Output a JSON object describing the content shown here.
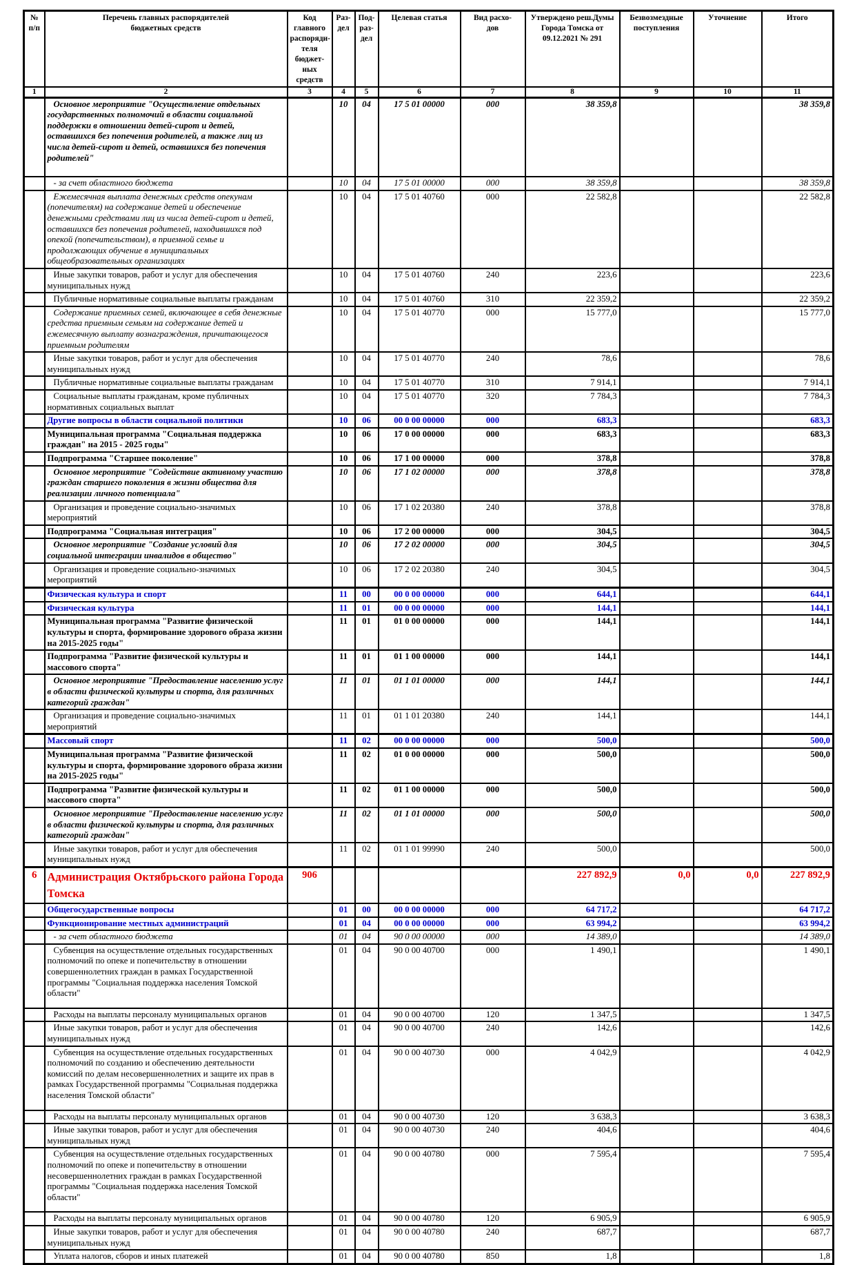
{
  "table": {
    "colors": {
      "section_heading": "#0000cd",
      "admin_heading": "#e60000",
      "body_text": "#000000"
    },
    "headers": {
      "num": "№\nп/п",
      "name": "Перечень главных распорядителей\nбюджетных средств",
      "code": "Код\nглавного\nраспоряди-\nтеля бюджет-\nных средств",
      "rz": "Раз-\nдел",
      "pr": "Под-\nраз-\nдел",
      "csr": "Целевая статья",
      "vr": "Вид расхо-\nдов",
      "approved": "Утверждено реш.Думы\nГорода Томска от\n09.12.2021 № 291",
      "grants": "Безвозмездные\nпоступления",
      "adjust": "Уточнение",
      "total": "Итого"
    },
    "column_numbers": [
      "1",
      "2",
      "3",
      "4",
      "5",
      "6",
      "7",
      "8",
      "9",
      "10",
      "11"
    ],
    "rows": [
      {
        "num": "",
        "name": "Основное мероприятие \"Осуществление отдельных государственных полномочий в области социальной поддержки в отношении детей-сирот и детей, оставшихся без попечения родителей, а также лиц из числа детей-сирот и детей, оставшихся без попечения родителей\"",
        "code": "",
        "rz": "10",
        "pr": "04",
        "csr": "17 5 01 00000",
        "vr": "000",
        "approved": "38 359,8",
        "grants": "",
        "adjust": "",
        "total": "38 359,8",
        "style": "m"
      },
      {
        "num": "",
        "name": "- за счет областного бюджета",
        "code": "",
        "rz": "10",
        "pr": "04",
        "csr": "17 5 01 00000",
        "vr": "000",
        "approved": "38 359,8",
        "grants": "",
        "adjust": "",
        "total": "38 359,8",
        "style": "i"
      },
      {
        "num": "",
        "name": "Ежемесячная выплата денежных средств опекунам (попечителям) на содержание детей и обеспечение денежными средствами лиц из числа детей-сирот и детей, оставшихся без попечения родителей, находившихся под опекой (попечительством), в приемной семье и продолжающих обучение в муниципальных общеобразовательных организациях",
        "code": "",
        "rz": "10",
        "pr": "04",
        "csr": "17 5 01 40760",
        "vr": "000",
        "approved": "22 582,8",
        "grants": "",
        "adjust": "",
        "total": "22 582,8",
        "style": "d"
      },
      {
        "num": "",
        "name": "Иные закупки товаров, работ и услуг для обеспечения муниципальных нужд",
        "code": "",
        "rz": "10",
        "pr": "04",
        "csr": "17 5 01 40760",
        "vr": "240",
        "approved": "223,6",
        "grants": "",
        "adjust": "",
        "total": "223,6",
        "style": "r"
      },
      {
        "num": "",
        "name": "Публичные нормативные социальные выплаты гражданам",
        "code": "",
        "rz": "10",
        "pr": "04",
        "csr": "17 5 01 40760",
        "vr": "310",
        "approved": "22 359,2",
        "grants": "",
        "adjust": "",
        "total": "22 359,2",
        "style": "r"
      },
      {
        "num": "",
        "name": "Содержание приемных семей, включающее в себя денежные средства приемным семьям на содержание детей и ежемесячную выплату вознаграждения, причитающегося приемным родителям",
        "code": "",
        "rz": "10",
        "pr": "04",
        "csr": "17 5 01 40770",
        "vr": "000",
        "approved": "15 777,0",
        "grants": "",
        "adjust": "",
        "total": "15 777,0",
        "style": "d"
      },
      {
        "num": "",
        "name": "Иные закупки товаров, работ и услуг для обеспечения муниципальных нужд",
        "code": "",
        "rz": "10",
        "pr": "04",
        "csr": "17 5 01 40770",
        "vr": "240",
        "approved": "78,6",
        "grants": "",
        "adjust": "",
        "total": "78,6",
        "style": "r"
      },
      {
        "num": "",
        "name": "Публичные нормативные социальные выплаты гражданам",
        "code": "",
        "rz": "10",
        "pr": "04",
        "csr": "17 5 01 40770",
        "vr": "310",
        "approved": "7 914,1",
        "grants": "",
        "adjust": "",
        "total": "7 914,1",
        "style": "r"
      },
      {
        "num": "",
        "name": "Социальные выплаты гражданам, кроме публичных нормативных социальных выплат",
        "code": "",
        "rz": "10",
        "pr": "04",
        "csr": "17 5 01 40770",
        "vr": "320",
        "approved": "7 784,3",
        "grants": "",
        "adjust": "",
        "total": "7 784,3",
        "style": "r"
      },
      {
        "num": "",
        "name": "Другие вопросы в области социальной политики",
        "code": "",
        "rz": "10",
        "pr": "06",
        "csr": "00 0 00 00000",
        "vr": "000",
        "approved": "683,3",
        "grants": "",
        "adjust": "",
        "total": "683,3",
        "style": "s"
      },
      {
        "num": "",
        "name": "Муниципальная программа \"Социальная поддержка граждан\" на 2015 - 2025 годы\"",
        "code": "",
        "rz": "10",
        "pr": "06",
        "csr": "17 0 00 00000",
        "vr": "000",
        "approved": "683,3",
        "grants": "",
        "adjust": "",
        "total": "683,3",
        "style": "b"
      },
      {
        "num": "",
        "name": "Подпрограмма \"Старшее поколение\"",
        "code": "",
        "rz": "10",
        "pr": "06",
        "csr": "17 1 00 00000",
        "vr": "000",
        "approved": "378,8",
        "grants": "",
        "adjust": "",
        "total": "378,8",
        "style": "b"
      },
      {
        "num": "",
        "name": "Основное мероприятие \"Содействие активному участию граждан старшего поколения в жизни общества для реализации личного потенциала\"",
        "code": "",
        "rz": "10",
        "pr": "06",
        "csr": "17 1 02 00000",
        "vr": "000",
        "approved": "378,8",
        "grants": "",
        "adjust": "",
        "total": "378,8",
        "style": "m"
      },
      {
        "num": "",
        "name": "Организация и проведение социально-значимых мероприятий",
        "code": "",
        "rz": "10",
        "pr": "06",
        "csr": "17 1 02 20380",
        "vr": "240",
        "approved": "378,8",
        "grants": "",
        "adjust": "",
        "total": "378,8",
        "style": "r"
      },
      {
        "num": "",
        "name": "Подпрограмма \"Социальная интеграция\"",
        "code": "",
        "rz": "10",
        "pr": "06",
        "csr": "17 2 00 00000",
        "vr": "000",
        "approved": "304,5",
        "grants": "",
        "adjust": "",
        "total": "304,5",
        "style": "b"
      },
      {
        "num": "",
        "name": "Основное мероприятие \"Создание условий для социальной интеграции инвалидов в общество\"",
        "code": "",
        "rz": "10",
        "pr": "06",
        "csr": "17 2 02 00000",
        "vr": "000",
        "approved": "304,5",
        "grants": "",
        "adjust": "",
        "total": "304,5",
        "style": "m"
      },
      {
        "num": "",
        "name": "Организация и проведение социально-значимых мероприятий",
        "code": "",
        "rz": "10",
        "pr": "06",
        "csr": "17 2 02 20380",
        "vr": "240",
        "approved": "304,5",
        "grants": "",
        "adjust": "",
        "total": "304,5",
        "style": "r"
      },
      {
        "num": "",
        "name": "Физическая культура и спорт",
        "code": "",
        "rz": "11",
        "pr": "00",
        "csr": "00 0 00 00000",
        "vr": "000",
        "approved": "644,1",
        "grants": "",
        "adjust": "",
        "total": "644,1",
        "style": "s"
      },
      {
        "num": "",
        "name": "Физическая культура",
        "code": "",
        "rz": "11",
        "pr": "01",
        "csr": "00 0 00 00000",
        "vr": "000",
        "approved": "144,1",
        "grants": "",
        "adjust": "",
        "total": "144,1",
        "style": "s"
      },
      {
        "num": "",
        "name": "Муниципальная программа \"Развитие физической культуры и спорта, формирование здорового образа жизни на 2015-2025 годы\"",
        "code": "",
        "rz": "11",
        "pr": "01",
        "csr": "01 0 00 00000",
        "vr": "000",
        "approved": "144,1",
        "grants": "",
        "adjust": "",
        "total": "144,1",
        "style": "b"
      },
      {
        "num": "",
        "name": "Подпрограмма \"Развитие физической культуры и массового спорта\"",
        "code": "",
        "rz": "11",
        "pr": "01",
        "csr": "01 1 00 00000",
        "vr": "000",
        "approved": "144,1",
        "grants": "",
        "adjust": "",
        "total": "144,1",
        "style": "b"
      },
      {
        "num": "",
        "name": "Основное мероприятие \"Предоставление населению услуг в области физической культуры и спорта, для различных категорий граждан\"",
        "code": "",
        "rz": "11",
        "pr": "01",
        "csr": "01 1 01 00000",
        "vr": "000",
        "approved": "144,1",
        "grants": "",
        "adjust": "",
        "total": "144,1",
        "style": "m"
      },
      {
        "num": "",
        "name": "Организация и проведение социально-значимых мероприятий",
        "code": "",
        "rz": "11",
        "pr": "01",
        "csr": "01 1 01 20380",
        "vr": "240",
        "approved": "144,1",
        "grants": "",
        "adjust": "",
        "total": "144,1",
        "style": "r"
      },
      {
        "num": "",
        "name": "Массовый спорт",
        "code": "",
        "rz": "11",
        "pr": "02",
        "csr": "00 0 00 00000",
        "vr": "000",
        "approved": "500,0",
        "grants": "",
        "adjust": "",
        "total": "500,0",
        "style": "s"
      },
      {
        "num": "",
        "name": "Муниципальная программа \"Развитие физической культуры и спорта, формирование здорового образа жизни на 2015-2025 годы\"",
        "code": "",
        "rz": "11",
        "pr": "02",
        "csr": "01 0 00 00000",
        "vr": "000",
        "approved": "500,0",
        "grants": "",
        "adjust": "",
        "total": "500,0",
        "style": "b"
      },
      {
        "num": "",
        "name": "Подпрограмма \"Развитие физической культуры и массового спорта\"",
        "code": "",
        "rz": "11",
        "pr": "02",
        "csr": "01 1 00 00000",
        "vr": "000",
        "approved": "500,0",
        "grants": "",
        "adjust": "",
        "total": "500,0",
        "style": "b"
      },
      {
        "num": "",
        "name": "Основное мероприятие \"Предоставление населению услуг в области физической культуры и спорта, для различных категорий граждан\"",
        "code": "",
        "rz": "11",
        "pr": "02",
        "csr": "01 1 01 00000",
        "vr": "000",
        "approved": "500,0",
        "grants": "",
        "adjust": "",
        "total": "500,0",
        "style": "m"
      },
      {
        "num": "",
        "name": "Иные закупки товаров, работ и услуг для обеспечения муниципальных нужд",
        "code": "",
        "rz": "11",
        "pr": "02",
        "csr": "01 1 01 99990",
        "vr": "240",
        "approved": "500,0",
        "grants": "",
        "adjust": "",
        "total": "500,0",
        "style": "r"
      },
      {
        "num": "6",
        "name": "Администрация Октябрьского района Города Томска",
        "code": "906",
        "rz": "",
        "pr": "",
        "csr": "",
        "vr": "",
        "approved": "227 892,9",
        "grants": "0,0",
        "adjust": "0,0",
        "total": "227 892,9",
        "style": "a"
      },
      {
        "num": "",
        "name": "Общегосударственные вопросы",
        "code": "",
        "rz": "01",
        "pr": "00",
        "csr": "00 0 00 00000",
        "vr": "000",
        "approved": "64 717,2",
        "grants": "",
        "adjust": "",
        "total": "64 717,2",
        "style": "s"
      },
      {
        "num": "",
        "name": "Функционирование местных администраций",
        "code": "",
        "rz": "01",
        "pr": "04",
        "csr": "00 0 00 00000",
        "vr": "000",
        "approved": "63 994,2",
        "grants": "",
        "adjust": "",
        "total": "63 994,2",
        "style": "s"
      },
      {
        "num": "",
        "name": "- за счет областного бюджета",
        "code": "",
        "rz": "01",
        "pr": "04",
        "csr": "90 0 00 00000",
        "vr": "000",
        "approved": "14 389,0",
        "grants": "",
        "adjust": "",
        "total": "14 389,0",
        "style": "i"
      },
      {
        "num": "",
        "name": "Субвенция на осуществление отдельных государственных полномочий по опеке и попечительству в отношении совершеннолетних граждан в рамках Государственной программы \"Социальная поддержка населения Томской области\"",
        "code": "",
        "rz": "01",
        "pr": "04",
        "csr": "90 0 00 40700",
        "vr": "000",
        "approved": "1 490,1",
        "grants": "",
        "adjust": "",
        "total": "1 490,1",
        "style": "r"
      },
      {
        "num": "",
        "name": "Расходы на выплаты персоналу муниципальных органов",
        "code": "",
        "rz": "01",
        "pr": "04",
        "csr": "90 0 00 40700",
        "vr": "120",
        "approved": "1 347,5",
        "grants": "",
        "adjust": "",
        "total": "1 347,5",
        "style": "r"
      },
      {
        "num": "",
        "name": "Иные закупки товаров, работ и услуг для обеспечения муниципальных нужд",
        "code": "",
        "rz": "01",
        "pr": "04",
        "csr": "90 0 00 40700",
        "vr": "240",
        "approved": "142,6",
        "grants": "",
        "adjust": "",
        "total": "142,6",
        "style": "r"
      },
      {
        "num": "",
        "name": "Субвенция на осуществление отдельных государственных полномочий по созданию и обеспечению деятельности комиссий по делам несовершеннолетних и защите их прав в рамках Государственной программы \"Социальная поддержка населения Томской области\"",
        "code": "",
        "rz": "01",
        "pr": "04",
        "csr": "90 0 00 40730",
        "vr": "000",
        "approved": "4 042,9",
        "grants": "",
        "adjust": "",
        "total": "4 042,9",
        "style": "r"
      },
      {
        "num": "",
        "name": "Расходы на выплаты персоналу муниципальных органов",
        "code": "",
        "rz": "01",
        "pr": "04",
        "csr": "90 0 00 40730",
        "vr": "120",
        "approved": "3 638,3",
        "grants": "",
        "adjust": "",
        "total": "3 638,3",
        "style": "r"
      },
      {
        "num": "",
        "name": "Иные закупки товаров, работ и услуг для обеспечения муниципальных нужд",
        "code": "",
        "rz": "01",
        "pr": "04",
        "csr": "90 0 00 40730",
        "vr": "240",
        "approved": "404,6",
        "grants": "",
        "adjust": "",
        "total": "404,6",
        "style": "r"
      },
      {
        "num": "",
        "name": "Субвенция на осуществление отдельных государственных полномочий по опеке и попечительству в отношении несовершеннолетних граждан в рамках Государственной программы \"Социальная поддержка населения Томской области\"",
        "code": "",
        "rz": "01",
        "pr": "04",
        "csr": "90 0 00 40780",
        "vr": "000",
        "approved": "7 595,4",
        "grants": "",
        "adjust": "",
        "total": "7 595,4",
        "style": "r"
      },
      {
        "num": "",
        "name": "Расходы на выплаты персоналу муниципальных органов",
        "code": "",
        "rz": "01",
        "pr": "04",
        "csr": "90 0 00 40780",
        "vr": "120",
        "approved": "6 905,9",
        "grants": "",
        "adjust": "",
        "total": "6 905,9",
        "style": "r"
      },
      {
        "num": "",
        "name": "Иные закупки товаров, работ и услуг для обеспечения муниципальных нужд",
        "code": "",
        "rz": "01",
        "pr": "04",
        "csr": "90 0 00 40780",
        "vr": "240",
        "approved": "687,7",
        "grants": "",
        "adjust": "",
        "total": "687,7",
        "style": "r"
      },
      {
        "num": "",
        "name": "Уплата налогов, сборов и иных платежей",
        "code": "",
        "rz": "01",
        "pr": "04",
        "csr": "90 0 00 40780",
        "vr": "850",
        "approved": "1,8",
        "grants": "",
        "adjust": "",
        "total": "1,8",
        "style": "r"
      }
    ]
  }
}
